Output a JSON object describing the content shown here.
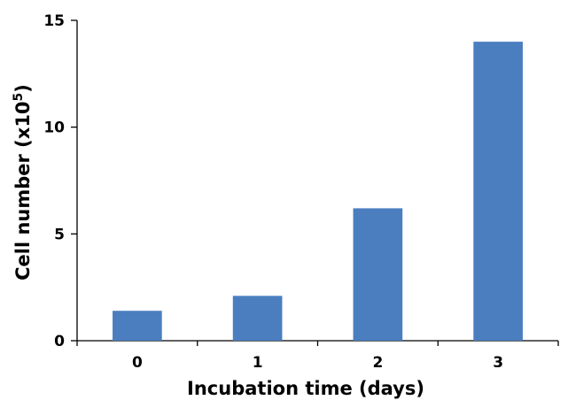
{
  "chart_data": {
    "type": "bar",
    "categories": [
      "0",
      "1",
      "2",
      "3"
    ],
    "values": [
      1.4,
      2.1,
      6.2,
      14.0
    ],
    "title": "",
    "xlabel": "Incubation time (days)",
    "ylabel": {
      "main": "Cell number  (x10",
      "superscript": "5",
      "end": ")"
    },
    "ylim": [
      0,
      15
    ],
    "yticks": [
      "0",
      "5",
      "10",
      "15"
    ],
    "bar_color": "#4a7ebf",
    "grid": false,
    "legend": "none"
  }
}
